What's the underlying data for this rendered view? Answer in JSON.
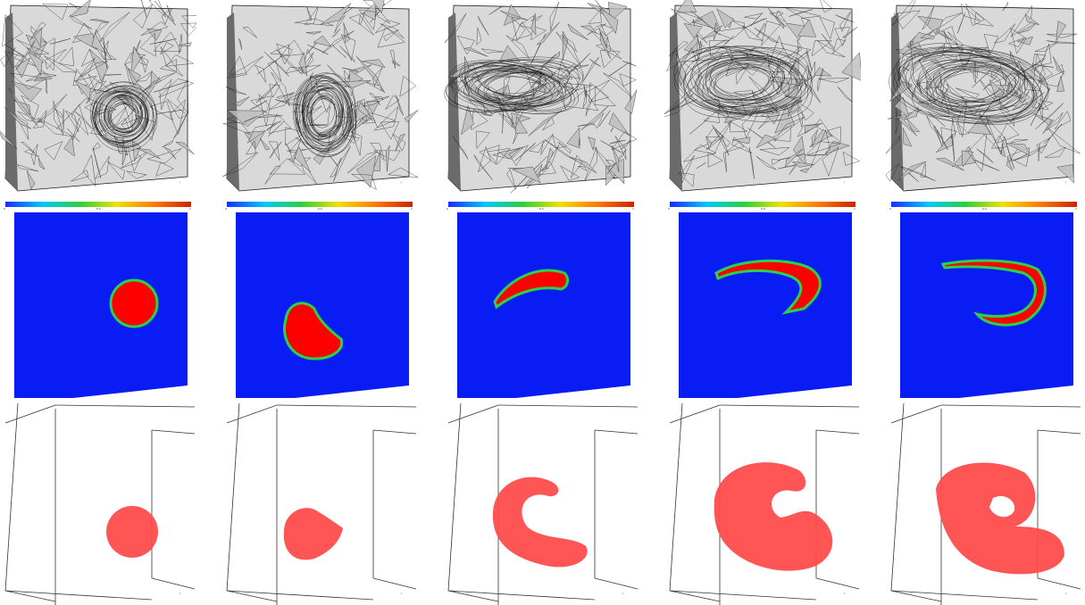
{
  "figure": {
    "columns": 5,
    "rows": [
      "adaptive-mesh",
      "volume-fraction-field",
      "interface-isosurface"
    ]
  },
  "colorbar": {
    "min_label": "0",
    "mid_label": "0.5",
    "max_label": "1",
    "colors": [
      "#1a2cff",
      "#00c8ff",
      "#29d13c",
      "#f0e000",
      "#ff7a00",
      "#cc2200"
    ]
  },
  "colors": {
    "background_field": "#0a1cf4",
    "droplet_fill": "#ff0000",
    "droplet_edge": "#2ad14b",
    "isosurface_fill": "#ff4c4c",
    "mesh_face": "#d9d9d9",
    "mesh_side": "#6b6b6b",
    "mesh_line": "#1a1a1a",
    "box_line": "#333333"
  },
  "stages": [
    {
      "id": 1,
      "shape": "circle"
    },
    {
      "id": 2,
      "shape": "kidney"
    },
    {
      "id": 3,
      "shape": "crescent"
    },
    {
      "id": 4,
      "shape": "hook"
    },
    {
      "id": 5,
      "shape": "spiral"
    }
  ]
}
